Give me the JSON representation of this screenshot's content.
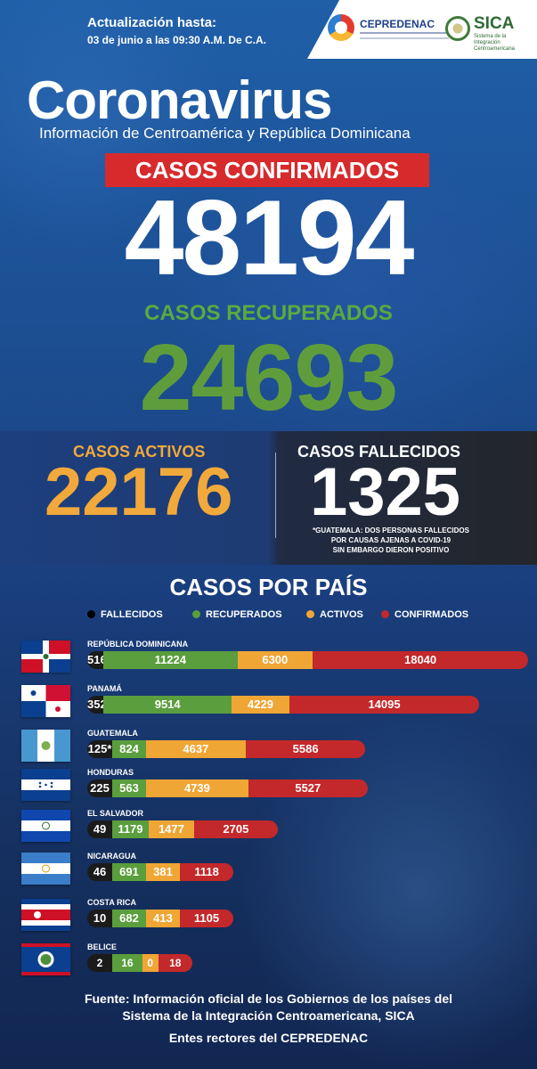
{
  "header": {
    "update_line1": "Actualización hasta:",
    "update_line2": "03 de junio a las 09:30 A.M. De C.A.",
    "logo_cepredenac": "CEPREDENAC",
    "logo_sica": "SICA",
    "logo_sica_sub": "Sistema de la Integración Centroamericana"
  },
  "title": "Coronavirus",
  "subtitle": "Información de Centroamérica y República Dominicana",
  "totals": {
    "confirmed_label": "CASOS CONFIRMADOS",
    "confirmed": "48194",
    "recovered_label": "CASOS RECUPERADOS",
    "recovered": "24693",
    "active_label": "CASOS ACTIVOS",
    "active": "22176",
    "deceased_label": "CASOS FALLECIDOS",
    "deceased": "1325",
    "note_line1": "*GUATEMALA: DOS PERSONAS FALLECIDOS",
    "note_line2": "POR CAUSAS AJENAS A COVID-19",
    "note_line3": "SIN EMBARGO DIERON POSITIVO"
  },
  "by_country_title": "CASOS POR PAÍS",
  "colors": {
    "fallecidos": "#1b1b1b",
    "recuperados": "#5a9e3d",
    "activos": "#f0a635",
    "confirmados": "#c3282a"
  },
  "chart_data": {
    "type": "bar",
    "orientation": "horizontal",
    "stacked": true,
    "title": "CASOS POR PAÍS",
    "categories": [
      "REPÚBLICA DOMINICANA",
      "PANAMÁ",
      "GUATEMALA",
      "HONDURAS",
      "EL SALVADOR",
      "NICARAGUA",
      "COSTA RICA",
      "BELICE"
    ],
    "legend_placement": "top",
    "series": [
      {
        "name": "FALLECIDOS",
        "color": "#1b1b1b",
        "values": [
          516,
          352,
          125,
          225,
          49,
          46,
          10,
          2
        ],
        "labels": [
          "516",
          "352",
          "125*",
          "225",
          "49",
          "46",
          "10",
          "2"
        ]
      },
      {
        "name": "RECUPERADOS",
        "color": "#5a9e3d",
        "values": [
          11224,
          9514,
          824,
          563,
          1179,
          691,
          682,
          16
        ]
      },
      {
        "name": "ACTIVOS",
        "color": "#f0a635",
        "values": [
          6300,
          4229,
          4637,
          4739,
          1477,
          381,
          413,
          0
        ]
      },
      {
        "name": "CONFIRMADOS",
        "color": "#c3282a",
        "values": [
          18040,
          14095,
          5586,
          5527,
          2705,
          1118,
          1105,
          18
        ]
      }
    ]
  },
  "footer": {
    "line1": "Fuente: Información oficial de los Gobiernos de los países del",
    "line2": "Sistema de la Integración Centroamericana, SICA",
    "line3": "Entes rectores del CEPREDENAC"
  }
}
